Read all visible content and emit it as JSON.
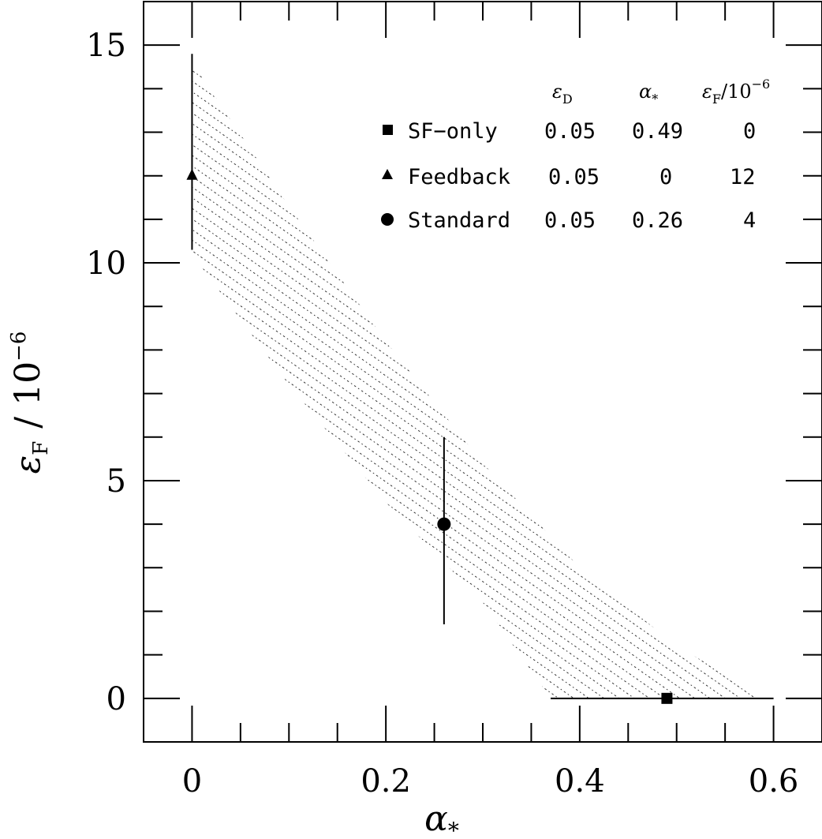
{
  "chart_data": {
    "type": "scatter",
    "xlabel": "α",
    "xlabel_sub": "*",
    "ylabel_main": "ε",
    "ylabel_sub": "F",
    "ylabel_suffix": "/  10",
    "ylabel_sup": "−6",
    "xlim": [
      -0.05,
      0.65
    ],
    "ylim": [
      -1,
      16
    ],
    "x_ticks_major": [
      0,
      0.2,
      0.4,
      0.6
    ],
    "x_tick_labels": [
      "0",
      "0.2",
      "0.4",
      "0.6"
    ],
    "y_ticks_major": [
      0,
      5,
      10,
      15
    ],
    "y_tick_labels": [
      "0",
      "5",
      "10",
      "15"
    ],
    "x_minor_step": 0.05,
    "y_minor_step": 1,
    "grid": false,
    "legend_position": "top-right",
    "legend_headers": {
      "eps_d": "ε",
      "eps_d_sub": "D",
      "alpha": "α",
      "alpha_sub": "*",
      "eps_f": "ε",
      "eps_f_sub": "F",
      "eps_f_suffix": "/10",
      "eps_f_sup": "−6"
    },
    "series": [
      {
        "name": "SF−only",
        "marker": "square",
        "eps_d": "0.05",
        "alpha_label": "0.49",
        "eps_f_label": "0",
        "x": 0.49,
        "y": 0,
        "xerr": [
          0.37,
          0.6
        ],
        "yerr": null
      },
      {
        "name": "Feedback",
        "marker": "triangle",
        "eps_d": "0.05",
        "alpha_label": "0",
        "eps_f_label": "12",
        "x": 0,
        "y": 12,
        "xerr": null,
        "yerr": [
          10.3,
          14.8
        ]
      },
      {
        "name": "Standard",
        "marker": "circle",
        "eps_d": "0.05",
        "alpha_label": "0.26",
        "eps_f_label": "4",
        "x": 0.26,
        "y": 4,
        "xerr": null,
        "yerr": [
          1.7,
          6.0
        ]
      }
    ],
    "shaded_band": {
      "upper": [
        [
          0,
          14.6
        ],
        [
          0.1,
          11.3
        ],
        [
          0.2,
          8.2
        ],
        [
          0.3,
          5.4
        ],
        [
          0.4,
          3.0
        ],
        [
          0.5,
          1.2
        ],
        [
          0.595,
          0
        ]
      ],
      "lower": [
        [
          0,
          10.2
        ],
        [
          0.1,
          7.2
        ],
        [
          0.2,
          4.5
        ],
        [
          0.3,
          2.2
        ],
        [
          0.37,
          0
        ]
      ]
    }
  }
}
